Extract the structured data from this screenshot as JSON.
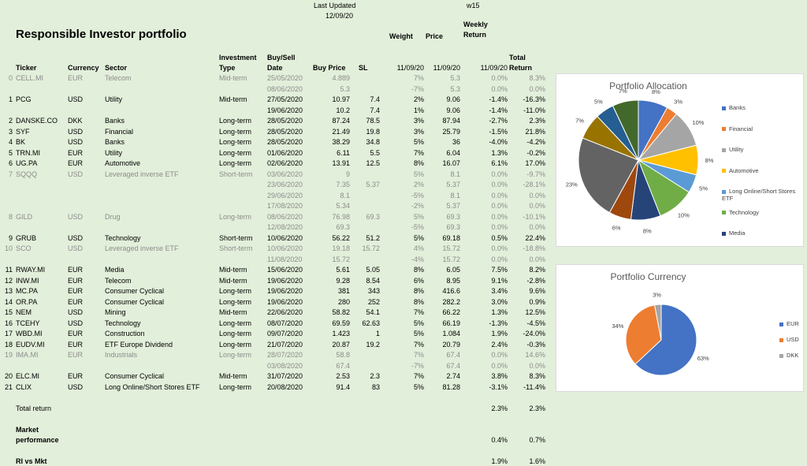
{
  "header": {
    "last_updated_label": "Last Updated",
    "last_updated_date": "12/09/20",
    "week": "w15",
    "title": "Responsible Investor portfolio",
    "weight_label": "Weight",
    "price_label": "Price",
    "weekly_return_label_1": "Weekly",
    "weekly_return_label_2": "Return"
  },
  "columns": {
    "ticker": "Ticker",
    "currency": "Currency",
    "sector": "Sector",
    "investment_type_1": "Investment",
    "investment_type_2": "Type",
    "date_1": "Buy/Sell",
    "date_2": "Date",
    "buy_price": "Buy Price",
    "sl": "SL",
    "weight_date": "11/09/20",
    "price_date": "11/09/20",
    "weekly_date": "11/09/20",
    "total_return_1": "Total",
    "total_return_2": "Return"
  },
  "rows": [
    {
      "idx": "0",
      "ticker": "CELL.MI",
      "cur": "EUR",
      "sector": "Telecom",
      "type": "Mid-term",
      "date": "25/05/2020",
      "buy": "4.889",
      "sl": "",
      "w": "7%",
      "price": "5.3",
      "wr": "0.0%",
      "tr": "8.3%",
      "grey": true
    },
    {
      "idx": "",
      "ticker": "",
      "cur": "",
      "sector": "",
      "type": "",
      "date": "08/06/2020",
      "buy": "5.3",
      "sl": "",
      "w": "-7%",
      "price": "5.3",
      "wr": "0.0%",
      "tr": "0.0%",
      "grey": true
    },
    {
      "idx": "1",
      "ticker": "PCG",
      "cur": "USD",
      "sector": "Utility",
      "type": "Mid-term",
      "date": "27/05/2020",
      "buy": "10.97",
      "sl": "7.4",
      "w": "2%",
      "price": "9.06",
      "wr": "-1.4%",
      "tr": "-16.3%",
      "grey": false
    },
    {
      "idx": "",
      "ticker": "",
      "cur": "",
      "sector": "",
      "type": "",
      "date": "19/06/2020",
      "buy": "10.2",
      "sl": "7.4",
      "w": "1%",
      "price": "9.06",
      "wr": "-1.4%",
      "tr": "-11.0%",
      "grey": false
    },
    {
      "idx": "2",
      "ticker": "DANSKE.CO",
      "cur": "DKK",
      "sector": "Banks",
      "type": "Long-term",
      "date": "28/05/2020",
      "buy": "87.24",
      "sl": "78.5",
      "w": "3%",
      "price": "87.94",
      "wr": "-2.7%",
      "tr": "2.3%",
      "grey": false
    },
    {
      "idx": "3",
      "ticker": "SYF",
      "cur": "USD",
      "sector": "Financial",
      "type": "Long-term",
      "date": "28/05/2020",
      "buy": "21.49",
      "sl": "19.8",
      "w": "3%",
      "price": "25.79",
      "wr": "-1.5%",
      "tr": "21.8%",
      "grey": false
    },
    {
      "idx": "4",
      "ticker": "BK",
      "cur": "USD",
      "sector": "Banks",
      "type": "Long-term",
      "date": "28/05/2020",
      "buy": "38.29",
      "sl": "34.8",
      "w": "5%",
      "price": "36",
      "wr": "-4.0%",
      "tr": "-4.2%",
      "grey": false
    },
    {
      "idx": "5",
      "ticker": "TRN.MI",
      "cur": "EUR",
      "sector": "Utility",
      "type": "Long-term",
      "date": "01/06/2020",
      "buy": "6.11",
      "sl": "5.5",
      "w": "7%",
      "price": "6.04",
      "wr": "1.3%",
      "tr": "-0.2%",
      "grey": false
    },
    {
      "idx": "6",
      "ticker": "UG.PA",
      "cur": "EUR",
      "sector": "Automotive",
      "type": "Long-term",
      "date": "02/06/2020",
      "buy": "13.91",
      "sl": "12.5",
      "w": "8%",
      "price": "16.07",
      "wr": "6.1%",
      "tr": "17.0%",
      "grey": false
    },
    {
      "idx": "7",
      "ticker": "SQQQ",
      "cur": "USD",
      "sector": "Leveraged inverse ETF",
      "type": "Short-term",
      "date": "03/06/2020",
      "buy": "9",
      "sl": "",
      "w": "5%",
      "price": "8.1",
      "wr": "0.0%",
      "tr": "-9.7%",
      "grey": true
    },
    {
      "idx": "",
      "ticker": "",
      "cur": "",
      "sector": "",
      "type": "",
      "date": "23/06/2020",
      "buy": "7.35",
      "sl": "5.37",
      "w": "2%",
      "price": "5.37",
      "wr": "0.0%",
      "tr": "-28.1%",
      "grey": true
    },
    {
      "idx": "",
      "ticker": "",
      "cur": "",
      "sector": "",
      "type": "",
      "date": "29/06/2020",
      "buy": "8.1",
      "sl": "",
      "w": "-5%",
      "price": "8.1",
      "wr": "0.0%",
      "tr": "0.0%",
      "grey": true
    },
    {
      "idx": "",
      "ticker": "",
      "cur": "",
      "sector": "",
      "type": "",
      "date": "17/08/2020",
      "buy": "5.34",
      "sl": "",
      "w": "-2%",
      "price": "5.37",
      "wr": "0.0%",
      "tr": "0.0%",
      "grey": true
    },
    {
      "idx": "8",
      "ticker": "GILD",
      "cur": "USD",
      "sector": "Drug",
      "type": "Long-term",
      "date": "08/06/2020",
      "buy": "76.98",
      "sl": "69.3",
      "w": "5%",
      "price": "69.3",
      "wr": "0.0%",
      "tr": "-10.1%",
      "grey": true
    },
    {
      "idx": "",
      "ticker": "",
      "cur": "",
      "sector": "",
      "type": "",
      "date": "12/08/2020",
      "buy": "69.3",
      "sl": "",
      "w": "-5%",
      "price": "69.3",
      "wr": "0.0%",
      "tr": "0.0%",
      "grey": true
    },
    {
      "idx": "9",
      "ticker": "GRUB",
      "cur": "USD",
      "sector": "Technology",
      "type": "Short-term",
      "date": "10/06/2020",
      "buy": "56.22",
      "sl": "51.2",
      "w": "5%",
      "price": "69.18",
      "wr": "0.5%",
      "tr": "22.4%",
      "grey": false
    },
    {
      "idx": "10",
      "ticker": "SCO",
      "cur": "USD",
      "sector": "Leveraged inverse ETF",
      "type": "Short-term",
      "date": "10/06/2020",
      "buy": "19.18",
      "sl": "15.72",
      "w": "4%",
      "price": "15.72",
      "wr": "0.0%",
      "tr": "-18.8%",
      "grey": true
    },
    {
      "idx": "",
      "ticker": "",
      "cur": "",
      "sector": "",
      "type": "",
      "date": "11/08/2020",
      "buy": "15.72",
      "sl": "",
      "w": "-4%",
      "price": "15.72",
      "wr": "0.0%",
      "tr": "0.0%",
      "grey": true
    },
    {
      "idx": "11",
      "ticker": "RWAY.MI",
      "cur": "EUR",
      "sector": "Media",
      "type": "Mid-term",
      "date": "15/06/2020",
      "buy": "5.61",
      "sl": "5.05",
      "w": "8%",
      "price": "6.05",
      "wr": "7.5%",
      "tr": "8.2%",
      "grey": false
    },
    {
      "idx": "12",
      "ticker": "INW.MI",
      "cur": "EUR",
      "sector": "Telecom",
      "type": "Mid-term",
      "date": "19/06/2020",
      "buy": "9.28",
      "sl": "8.54",
      "w": "6%",
      "price": "8.95",
      "wr": "9.1%",
      "tr": "-2.8%",
      "grey": false
    },
    {
      "idx": "13",
      "ticker": "MC.PA",
      "cur": "EUR",
      "sector": "Consumer Cyclical",
      "type": "Long-term",
      "date": "19/06/2020",
      "buy": "381",
      "sl": "343",
      "w": "8%",
      "price": "416.6",
      "wr": "3.4%",
      "tr": "9.6%",
      "grey": false
    },
    {
      "idx": "14",
      "ticker": "OR.PA",
      "cur": "EUR",
      "sector": "Consumer Cyclical",
      "type": "Long-term",
      "date": "19/06/2020",
      "buy": "280",
      "sl": "252",
      "w": "8%",
      "price": "282.2",
      "wr": "3.0%",
      "tr": "0.9%",
      "grey": false
    },
    {
      "idx": "15",
      "ticker": "NEM",
      "cur": "USD",
      "sector": "Mining",
      "type": "Mid-term",
      "date": "22/06/2020",
      "buy": "58.82",
      "sl": "54.1",
      "w": "7%",
      "price": "66.22",
      "wr": "1.3%",
      "tr": "12.5%",
      "grey": false
    },
    {
      "idx": "16",
      "ticker": "TCEHY",
      "cur": "USD",
      "sector": "Technology",
      "type": "Long-term",
      "date": "08/07/2020",
      "buy": "69.59",
      "sl": "62.63",
      "w": "5%",
      "price": "66.19",
      "wr": "-1.3%",
      "tr": "-4.5%",
      "grey": false
    },
    {
      "idx": "17",
      "ticker": "WBD.MI",
      "cur": "EUR",
      "sector": "Construction",
      "type": "Long-term",
      "date": "09/07/2020",
      "buy": "1.423",
      "sl": "1",
      "w": "5%",
      "price": "1.084",
      "wr": "1.9%",
      "tr": "-24.0%",
      "grey": false
    },
    {
      "idx": "18",
      "ticker": "EUDV.MI",
      "cur": "EUR",
      "sector": "ETF Europe Dividend",
      "type": "Long-term",
      "date": "21/07/2020",
      "buy": "20.87",
      "sl": "19.2",
      "w": "7%",
      "price": "20.79",
      "wr": "2.4%",
      "tr": "-0.3%",
      "grey": false
    },
    {
      "idx": "19",
      "ticker": "IMA.MI",
      "cur": "EUR",
      "sector": "Industrials",
      "type": "Long-term",
      "date": "28/07/2020",
      "buy": "58.8",
      "sl": "",
      "w": "7%",
      "price": "67.4",
      "wr": "0.0%",
      "tr": "14.6%",
      "grey": true
    },
    {
      "idx": "",
      "ticker": "",
      "cur": "",
      "sector": "",
      "type": "",
      "date": "03/08/2020",
      "buy": "67.4",
      "sl": "",
      "w": "-7%",
      "price": "67.4",
      "wr": "0.0%",
      "tr": "0.0%",
      "grey": true
    },
    {
      "idx": "20",
      "ticker": "ELC.MI",
      "cur": "EUR",
      "sector": "Consumer Cyclical",
      "type": "Mid-term",
      "date": "31/07/2020",
      "buy": "2.53",
      "sl": "2.3",
      "w": "7%",
      "price": "2.74",
      "wr": "3.8%",
      "tr": "8.3%",
      "grey": false
    },
    {
      "idx": "21",
      "ticker": "CLIX",
      "cur": "USD",
      "sector": "Long Online/Short Stores ETF",
      "type": "Long-term",
      "date": "20/08/2020",
      "buy": "91.4",
      "sl": "83",
      "w": "5%",
      "price": "81.28",
      "wr": "-3.1%",
      "tr": "-11.4%",
      "grey": false
    }
  ],
  "summary": {
    "total_return_label": "Total return",
    "total_return_weekly": "2.3%",
    "total_return_total": "2.3%",
    "market_label_1": "Market",
    "market_label_2": "performance",
    "market_weekly": "0.4%",
    "market_total": "0.7%",
    "ri_label": "RI vs Mkt",
    "ri_weekly": "1.9%",
    "ri_total": "1.6%"
  },
  "chart_data": [
    {
      "type": "pie",
      "title": "Portfolio Allocation",
      "legend_position": "right",
      "legend": [
        "Banks",
        "Financial",
        "Utility",
        "Automotive",
        "Long Online/Short Stores ETF",
        "Technology",
        "Media"
      ],
      "slices": [
        {
          "value": 8,
          "label": "8%",
          "color": "#4472c4"
        },
        {
          "value": 3,
          "label": "3%",
          "color": "#ed7d31"
        },
        {
          "value": 10,
          "label": "10%",
          "color": "#a5a5a5"
        },
        {
          "value": 8,
          "label": "8%",
          "color": "#ffc000"
        },
        {
          "value": 5,
          "label": "5%",
          "color": "#5b9bd5"
        },
        {
          "value": 10,
          "label": "10%",
          "color": "#70ad47"
        },
        {
          "value": 8,
          "label": "8%",
          "color": "#264478"
        },
        {
          "value": 6,
          "label": "6%",
          "color": "#9e480e"
        },
        {
          "value": 23,
          "label": "23%",
          "color": "#636363"
        },
        {
          "value": 7,
          "label": "7%",
          "color": "#997300"
        },
        {
          "value": 5,
          "label": "5%",
          "color": "#255e91"
        },
        {
          "value": 7,
          "label": "7%",
          "color": "#43682b"
        }
      ]
    },
    {
      "type": "pie",
      "title": "Portfolio Currency",
      "legend_position": "right",
      "legend": [
        "EUR",
        "USD",
        "DKK"
      ],
      "slices": [
        {
          "value": 63,
          "label": "63%",
          "color": "#4472c4"
        },
        {
          "value": 34,
          "label": "34%",
          "color": "#ed7d31"
        },
        {
          "value": 3,
          "label": "3%",
          "color": "#a5a5a5"
        }
      ]
    }
  ]
}
